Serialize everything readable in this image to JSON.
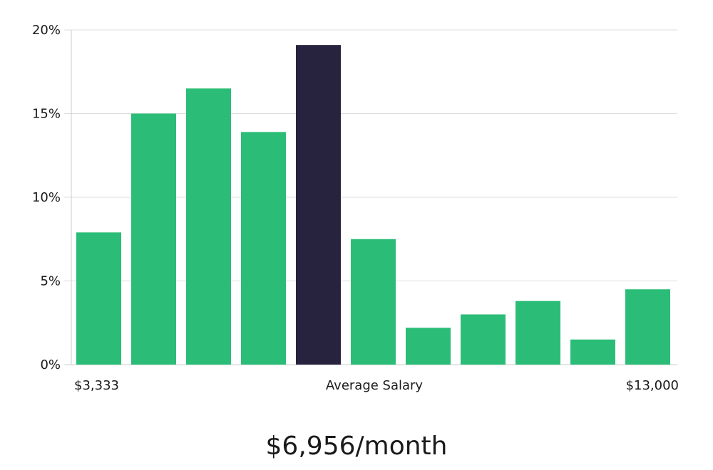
{
  "chart_data": {
    "type": "bar",
    "categories": [
      "$3,333",
      "",
      "",
      "",
      "Average Salary",
      "",
      "",
      "",
      "",
      "",
      "$13,000"
    ],
    "values": [
      7.9,
      15.0,
      16.5,
      13.9,
      19.1,
      7.5,
      2.2,
      3.0,
      3.8,
      1.5,
      4.5
    ],
    "highlight_index": 4,
    "yticks": [
      "0%",
      "5%",
      "10%",
      "15%",
      "20%"
    ],
    "ylim": [
      0,
      20
    ],
    "grid": true,
    "x_labels": {
      "left": "$3,333",
      "center": "Average Salary",
      "right": "$13,000"
    },
    "colors": {
      "bar": "#2bbd77",
      "highlight": "#27233f",
      "grid": "#dddddd",
      "axis": "#cccccc"
    }
  },
  "headline": "$6,956/month"
}
